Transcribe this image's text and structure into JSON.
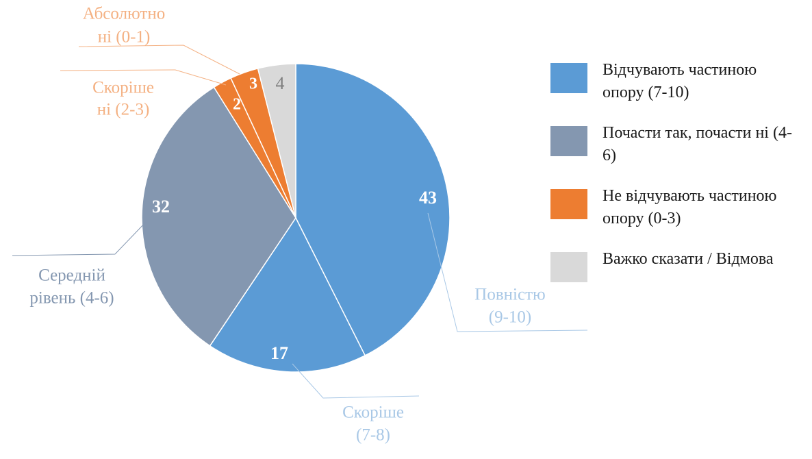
{
  "chart_data": {
    "type": "pie",
    "title": "",
    "slices": [
      {
        "name": "Повністю (9-10)",
        "label_lines": [
          "Повністю",
          "(9-10)"
        ],
        "value": 43,
        "value_label": "43",
        "color": "#5b9bd5",
        "label_color": "#a9c8e6",
        "value_label_color": "#ffffff"
      },
      {
        "name": "Скоріше (7-8)",
        "label_lines": [
          "Скоріше",
          "(7-8)"
        ],
        "value": 17,
        "value_label": "17",
        "color": "#5b9bd5",
        "label_color": "#a9c8e6",
        "value_label_color": "#ffffff"
      },
      {
        "name": "Середній рівень (4-6)",
        "label_lines": [
          "Середній",
          "рівень (4-6)"
        ],
        "value": 32,
        "value_label": "32",
        "color": "#8497b0",
        "label_color": "#8497b0",
        "value_label_color": "#ffffff"
      },
      {
        "name": "Скоріше ні (2-3)",
        "label_lines": [
          "Скоріше",
          "ні (2-3)"
        ],
        "value": 2,
        "value_label": "2",
        "color": "#ed7d31",
        "label_color": "#f4b183",
        "value_label_color": "#ffffff"
      },
      {
        "name": "Абсолютно ні (0-1)",
        "label_lines": [
          "Абсолютно",
          "ні (0-1)"
        ],
        "value": 3,
        "value_label": "3",
        "color": "#ed7d31",
        "label_color": "#f4b183",
        "value_label_color": "#ffffff"
      },
      {
        "name": "Важко сказати / Відмова",
        "label_lines": [],
        "value": 4,
        "value_label": "4",
        "color": "#d9d9d9",
        "label_color": "#7f7f7f",
        "value_label_color": "#7f7f7f"
      }
    ],
    "legend": {
      "position": "right",
      "entries": [
        {
          "label": "Відчувають частиною опору (7-10)",
          "color": "#5b9bd5"
        },
        {
          "label": "Почасти так, почасти ні (4-6)",
          "color": "#8497b0"
        },
        {
          "label": "Не відчувають частиною опору (0-3)",
          "color": "#ed7d31"
        },
        {
          "label": "Важко сказати / Відмова",
          "color": "#d9d9d9"
        }
      ]
    }
  }
}
